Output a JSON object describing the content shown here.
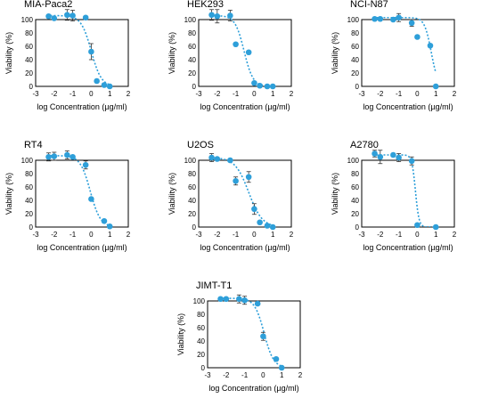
{
  "chart_data": [
    {
      "type": "scatter",
      "title": "MIA-Paca2",
      "xlabel": "log Concentration (µg/ml)",
      "ylabel": "Viability (%)",
      "xlim": [
        -3,
        2
      ],
      "ylim": [
        0,
        100
      ],
      "xticks": [
        "-3",
        "-2",
        "-1",
        "0",
        "1",
        "2"
      ],
      "yticks": [
        "0",
        "20",
        "40",
        "60",
        "80",
        "100"
      ],
      "x": [
        -2.3,
        -2.0,
        -1.3,
        -1.0,
        -0.3,
        0.0,
        0.3,
        0.7,
        1.0
      ],
      "y": [
        105,
        102,
        107,
        106,
        103,
        52,
        8,
        2,
        0
      ],
      "err": [
        0,
        0,
        8,
        8,
        0,
        12,
        0,
        0,
        0
      ],
      "fit": {
        "top": 106,
        "bottom": 0,
        "logIC50": 0.0,
        "hill": 1.6
      }
    },
    {
      "type": "scatter",
      "title": "HEK293",
      "xlabel": "log Concentration (µg/ml)",
      "ylabel": "Viability (%)",
      "xlim": [
        -3,
        2
      ],
      "ylim": [
        0,
        100
      ],
      "xticks": [
        "-3",
        "-2",
        "-1",
        "0",
        "1",
        "2"
      ],
      "yticks": [
        "0",
        "20",
        "40",
        "60",
        "80",
        "100"
      ],
      "x": [
        -2.3,
        -2.0,
        -1.3,
        -1.0,
        -0.3,
        0.0,
        0.3,
        0.7,
        1.0
      ],
      "y": [
        107,
        105,
        106,
        63,
        51,
        5,
        1,
        0,
        0
      ],
      "err": [
        8,
        10,
        8,
        0,
        0,
        0,
        0,
        0,
        0
      ],
      "fit": {
        "top": 106,
        "bottom": 0,
        "logIC50": -0.55,
        "hill": 1.8
      }
    },
    {
      "type": "scatter",
      "title": "NCI-N87",
      "xlabel": "log Concentration (µg/ml)",
      "ylabel": "Viability (%)",
      "xlim": [
        -3,
        2
      ],
      "ylim": [
        0,
        100
      ],
      "xticks": [
        "-3",
        "-2",
        "-1",
        "0",
        "1",
        "2"
      ],
      "yticks": [
        "0",
        "20",
        "40",
        "60",
        "80",
        "100"
      ],
      "x": [
        -2.3,
        -2.0,
        -1.3,
        -1.0,
        -0.3,
        0.0,
        0.7,
        1.0
      ],
      "y": [
        101,
        101,
        100,
        103,
        95,
        74,
        61,
        0
      ],
      "err": [
        0,
        0,
        0,
        6,
        5,
        0,
        0,
        0
      ],
      "fit": {
        "top": 103,
        "bottom": 0,
        "logIC50": 0.75,
        "hill": 2.4
      }
    },
    {
      "type": "scatter",
      "title": "RT4",
      "xlabel": "log Concentration (µg/ml)",
      "ylabel": "Viability (%)",
      "xlim": [
        -3,
        2
      ],
      "ylim": [
        0,
        100
      ],
      "xticks": [
        "-3",
        "-2",
        "-1",
        "0",
        "1",
        "2"
      ],
      "yticks": [
        "0",
        "20",
        "40",
        "60",
        "80",
        "100"
      ],
      "x": [
        -2.3,
        -2.0,
        -1.3,
        -1.0,
        -0.3,
        0.0,
        0.7,
        1.0
      ],
      "y": [
        105,
        106,
        108,
        105,
        93,
        42,
        9,
        1
      ],
      "err": [
        6,
        6,
        6,
        0,
        6,
        0,
        0,
        0
      ],
      "fit": {
        "top": 107,
        "bottom": 0,
        "logIC50": -0.05,
        "hill": 1.6
      }
    },
    {
      "type": "scatter",
      "title": "U2OS",
      "xlabel": "log Concentration (µg/ml)",
      "ylabel": "Viability (%)",
      "xlim": [
        -3,
        2
      ],
      "ylim": [
        0,
        100
      ],
      "xticks": [
        "-3",
        "-2",
        "-1",
        "0",
        "1",
        "2"
      ],
      "yticks": [
        "0",
        "20",
        "40",
        "60",
        "80",
        "100"
      ],
      "x": [
        -2.3,
        -2.0,
        -1.3,
        -1.0,
        -0.3,
        0.0,
        0.3,
        0.7,
        1.0
      ],
      "y": [
        104,
        102,
        100,
        69,
        75,
        27,
        7,
        2,
        0
      ],
      "err": [
        6,
        0,
        0,
        6,
        8,
        8,
        0,
        0,
        0
      ],
      "fit": {
        "top": 104,
        "bottom": 0,
        "logIC50": -0.3,
        "hill": 1.2
      }
    },
    {
      "type": "scatter",
      "title": "A2780",
      "xlabel": "log Concentration (µg/ml)",
      "ylabel": "Viability (%)",
      "xlim": [
        -3,
        2
      ],
      "ylim": [
        0,
        100
      ],
      "xticks": [
        "-3",
        "-2",
        "-1",
        "0",
        "1",
        "2"
      ],
      "yticks": [
        "0",
        "20",
        "40",
        "60",
        "80",
        "100"
      ],
      "x": [
        -2.3,
        -2.0,
        -1.3,
        -1.0,
        -0.3,
        0.0,
        1.0
      ],
      "y": [
        110,
        105,
        108,
        104,
        99,
        3,
        0
      ],
      "err": [
        5,
        10,
        0,
        6,
        6,
        0,
        0
      ],
      "fit": {
        "top": 108,
        "bottom": 0,
        "logIC50": -0.1,
        "hill": 4.5
      }
    },
    {
      "type": "scatter",
      "title": "JIMT-T1",
      "xlabel": "log Concentration (µg/ml)",
      "ylabel": "Viability (%)",
      "xlim": [
        -3,
        2
      ],
      "ylim": [
        0,
        100
      ],
      "xticks": [
        "-3",
        "-2",
        "-1",
        "0",
        "1",
        "2"
      ],
      "yticks": [
        "0",
        "20",
        "40",
        "60",
        "80",
        "100"
      ],
      "x": [
        -2.3,
        -2.0,
        -1.3,
        -1.0,
        -0.3,
        0.0,
        0.7,
        1.0
      ],
      "y": [
        103,
        103,
        103,
        101,
        96,
        47,
        13,
        0
      ],
      "err": [
        0,
        0,
        6,
        6,
        0,
        6,
        0,
        0
      ],
      "fit": {
        "top": 104,
        "bottom": 0,
        "logIC50": 0.05,
        "hill": 1.7
      }
    }
  ],
  "colors": {
    "marker": "#2e9fd9",
    "fit": "#2e9fd9",
    "axis": "#000000",
    "errorbar": "#333333"
  }
}
